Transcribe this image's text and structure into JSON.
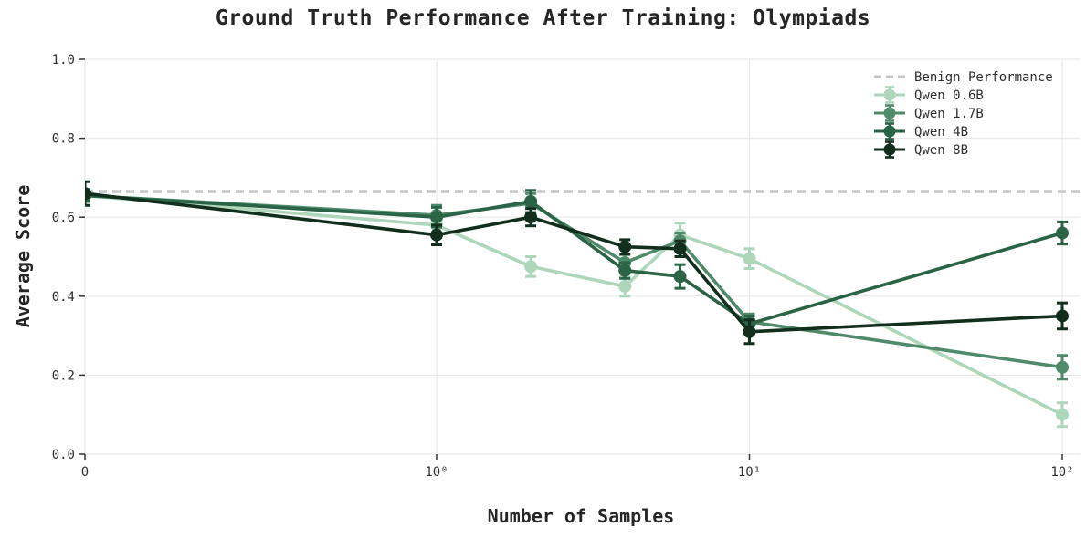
{
  "chart_data": {
    "type": "line",
    "title": "Ground Truth Performance After Training: Olympiads",
    "xlabel": "Number of Samples",
    "ylabel": "Average Score",
    "x_scale": "log-with-zero",
    "ylim": [
      0.0,
      1.0
    ],
    "grid": true,
    "legend_position": "upper right",
    "x_ticks": [
      {
        "value": 0,
        "label": "0"
      },
      {
        "value": 1,
        "label": "10⁰"
      },
      {
        "value": 10,
        "label": "10¹"
      },
      {
        "value": 100,
        "label": "10²"
      }
    ],
    "y_ticks": [
      {
        "value": 0.0,
        "label": "0.0"
      },
      {
        "value": 0.2,
        "label": "0.2"
      },
      {
        "value": 0.4,
        "label": "0.4"
      },
      {
        "value": 0.6,
        "label": "0.6"
      },
      {
        "value": 0.8,
        "label": "0.8"
      },
      {
        "value": 1.0,
        "label": "1.0"
      }
    ],
    "benign": {
      "label": "Benign Performance",
      "value": 0.665,
      "color": "#c6c6c6",
      "style": "dashed"
    },
    "samples": [
      0,
      1,
      2,
      4,
      6,
      10,
      100
    ],
    "series": [
      {
        "name": "Qwen 0.6B",
        "color": "#aed6bb",
        "x": [
          0,
          1,
          2,
          4,
          6,
          10,
          100
        ],
        "y": [
          0.655,
          0.58,
          0.475,
          0.425,
          0.555,
          0.495,
          0.1
        ],
        "yerr": [
          0.015,
          0.02,
          0.025,
          0.025,
          0.03,
          0.025,
          0.03
        ]
      },
      {
        "name": "Qwen 1.7B",
        "color": "#4f8b6b",
        "x": [
          0,
          1,
          2,
          4,
          6,
          10,
          100
        ],
        "y": [
          0.655,
          0.605,
          0.635,
          0.485,
          0.54,
          0.335,
          0.22
        ],
        "yerr": [
          0.015,
          0.025,
          0.025,
          0.02,
          0.02,
          0.02,
          0.03
        ]
      },
      {
        "name": "Qwen 4B",
        "color": "#2b6346",
        "x": [
          0,
          1,
          2,
          4,
          6,
          10,
          100
        ],
        "y": [
          0.655,
          0.6,
          0.64,
          0.465,
          0.45,
          0.33,
          0.56
        ],
        "yerr": [
          0.015,
          0.025,
          0.028,
          0.02,
          0.03,
          0.02,
          0.028
        ]
      },
      {
        "name": "Qwen 8B",
        "color": "#122e1d",
        "x": [
          0,
          1,
          2,
          4,
          6,
          10,
          100
        ],
        "y": [
          0.66,
          0.555,
          0.6,
          0.525,
          0.52,
          0.31,
          0.35
        ],
        "yerr": [
          0.03,
          0.025,
          0.022,
          0.018,
          0.02,
          0.03,
          0.033
        ]
      }
    ]
  }
}
